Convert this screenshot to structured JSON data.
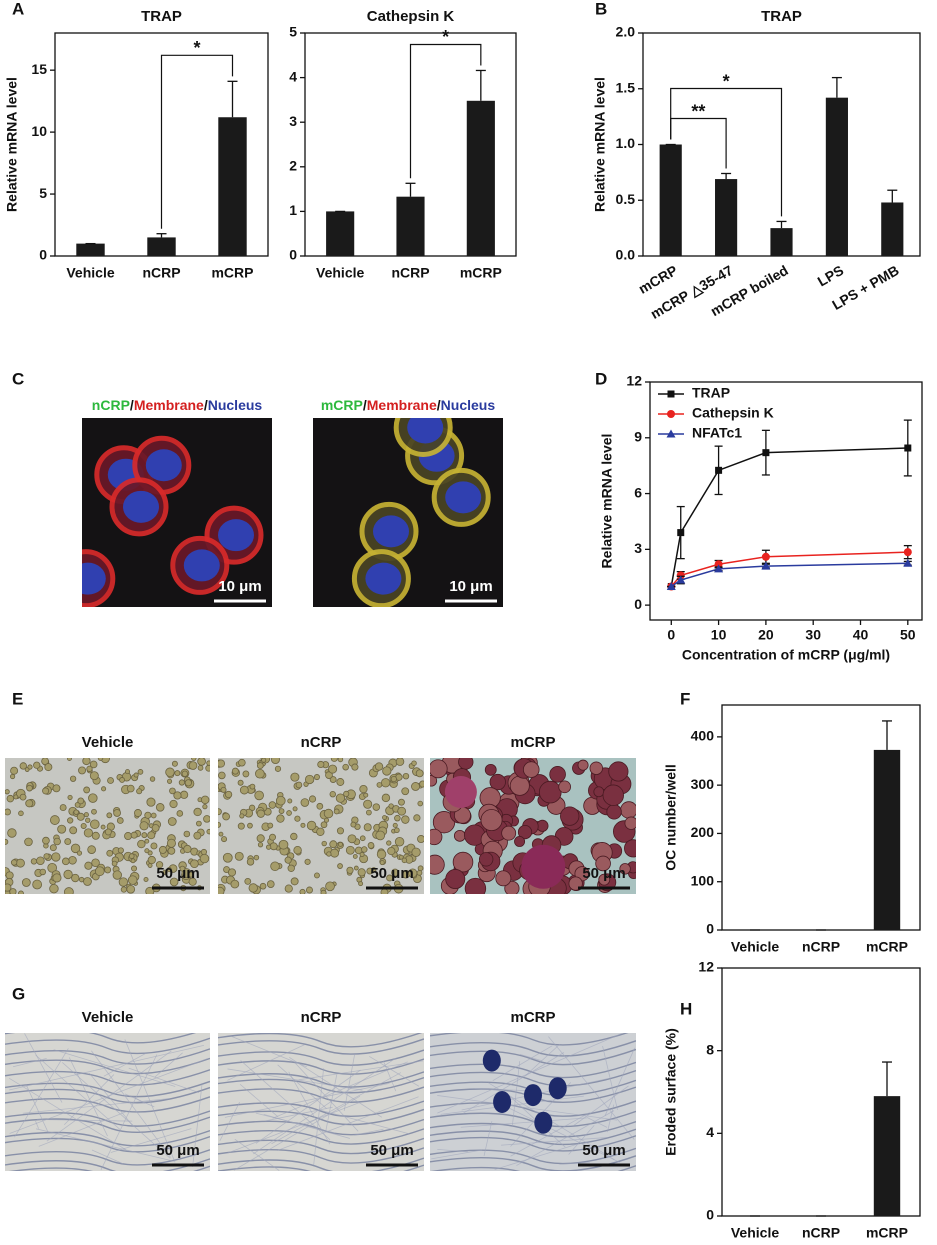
{
  "panel_labels": [
    "A",
    "B",
    "C",
    "D",
    "E",
    "F",
    "G",
    "H"
  ],
  "chart_data": [
    {
      "type": "bar",
      "title": "TRAP",
      "y_label": "Relative mRNA level",
      "categories": [
        "Vehicle",
        "nCRP",
        "mCRP"
      ],
      "values": [
        1,
        1.5,
        11.2
      ],
      "errors": [
        0,
        0.3,
        2.9
      ],
      "color": "#1a1a1a",
      "ylim": [
        0,
        18
      ],
      "yticks": [
        0,
        5,
        10,
        15
      ],
      "annotations": [
        {
          "text": "*",
          "between": [
            "nCRP",
            "mCRP"
          ]
        }
      ]
    },
    {
      "type": "bar",
      "title": "Cathepsin K",
      "categories": [
        "Vehicle",
        "nCRP",
        "mCRP"
      ],
      "values": [
        1,
        1.33,
        3.48
      ],
      "errors": [
        0,
        0.3,
        0.68
      ],
      "color": "#1a1a1a",
      "ylim": [
        0,
        5
      ],
      "yticks": [
        0,
        1,
        2,
        3,
        4,
        5
      ],
      "annotations": [
        {
          "text": "*",
          "between": [
            "nCRP",
            "mCRP"
          ]
        }
      ]
    },
    {
      "type": "bar",
      "title": "TRAP",
      "y_label": "Relative mRNA level",
      "categories": [
        "mCRP",
        "mCRP △35-47",
        "mCRP boiled",
        "LPS",
        "LPS + PMB"
      ],
      "values": [
        1.0,
        0.69,
        0.25,
        1.42,
        0.48
      ],
      "errors": [
        0,
        0.05,
        0.06,
        0.18,
        0.11
      ],
      "color": "#1a1a1a",
      "ylim": [
        0,
        2
      ],
      "yticks": [
        {
          "value": 0,
          "label": "0.0"
        },
        {
          "value": 0.5,
          "label": "0.5"
        },
        {
          "value": 1,
          "label": "1.0"
        },
        {
          "value": 1.5,
          "label": "1.5"
        },
        {
          "value": 2,
          "label": "2.0"
        }
      ],
      "annotations": [
        {
          "text": "**",
          "between": [
            "mCRP",
            "mCRP △35-47"
          ]
        },
        {
          "text": "*",
          "between": [
            "mCRP",
            "mCRP boiled"
          ]
        }
      ]
    },
    {
      "type": "line",
      "y_label": "Relative mRNA level",
      "x_label": "Concentration of mCRP (μg/ml)",
      "x": [
        0,
        2,
        10,
        20,
        50
      ],
      "series": [
        {
          "name": "TRAP",
          "color": "#111111",
          "marker": "square",
          "values": [
            1,
            3.9,
            7.25,
            8.2,
            8.45
          ],
          "errors": [
            0,
            1.4,
            1.3,
            1.2,
            1.5
          ]
        },
        {
          "name": "Cathepsin K",
          "color": "#e8231f",
          "marker": "circle",
          "values": [
            1,
            1.6,
            2.2,
            2.6,
            2.85
          ],
          "errors": [
            0,
            0.2,
            0.2,
            0.35,
            0.35
          ]
        },
        {
          "name": "NFATc1",
          "color": "#2a3b9e",
          "marker": "triangle",
          "values": [
            1,
            1.35,
            1.95,
            2.1,
            2.25
          ],
          "errors": [
            0,
            0.2,
            0.1,
            0.1,
            0.1
          ]
        }
      ],
      "xlim": [
        -4.5,
        53
      ],
      "ylim": [
        -0.8,
        12
      ],
      "xticks": [
        0,
        10,
        20,
        30,
        40,
        50
      ],
      "yticks": [
        0,
        3,
        6,
        9,
        12
      ],
      "legend": "upper left"
    },
    {
      "type": "bar",
      "y_label": "OC number/well",
      "categories": [
        "Vehicle",
        "nCRP",
        "mCRP"
      ],
      "values": [
        0,
        0,
        373
      ],
      "errors": [
        0,
        0,
        60
      ],
      "color": "#1a1a1a",
      "ylim": [
        0,
        466
      ],
      "yticks": [
        0,
        100,
        200,
        300,
        400
      ]
    },
    {
      "type": "bar",
      "y_label": "Eroded surface (%)",
      "categories": [
        "Vehicle",
        "nCRP",
        "mCRP"
      ],
      "values": [
        0,
        0,
        5.8
      ],
      "errors": [
        0,
        0,
        1.65
      ],
      "color": "#1a1a1a",
      "ylim": [
        0,
        12
      ],
      "yticks": [
        0,
        4,
        8,
        12
      ]
    }
  ],
  "micrographs": {
    "C": [
      {
        "title": [
          {
            "text": "nCRP",
            "color": "#2db83d"
          },
          {
            "text": "/",
            "color": "#111111"
          },
          {
            "text": "Membrane",
            "color": "#d42020"
          },
          {
            "text": "/",
            "color": "#111111"
          },
          {
            "text": "Nucleus",
            "color": "#2a3b9e"
          }
        ],
        "scale_bar": "10 μm"
      },
      {
        "title": [
          {
            "text": "mCRP",
            "color": "#2db83d"
          },
          {
            "text": "/",
            "color": "#111111"
          },
          {
            "text": "Membrane",
            "color": "#d42020"
          },
          {
            "text": "/",
            "color": "#111111"
          },
          {
            "text": "Nucleus",
            "color": "#2a3b9e"
          }
        ],
        "scale_bar": "10 μm"
      }
    ],
    "E": [
      {
        "title": "Vehicle",
        "scale_bar": "50 μm"
      },
      {
        "title": "nCRP",
        "scale_bar": "50 μm"
      },
      {
        "title": "mCRP",
        "scale_bar": "50 μm"
      }
    ],
    "G": [
      {
        "title": "Vehicle",
        "scale_bar": "50 μm"
      },
      {
        "title": "nCRP",
        "scale_bar": "50 μm"
      },
      {
        "title": "mCRP",
        "scale_bar": "50 μm"
      }
    ]
  }
}
